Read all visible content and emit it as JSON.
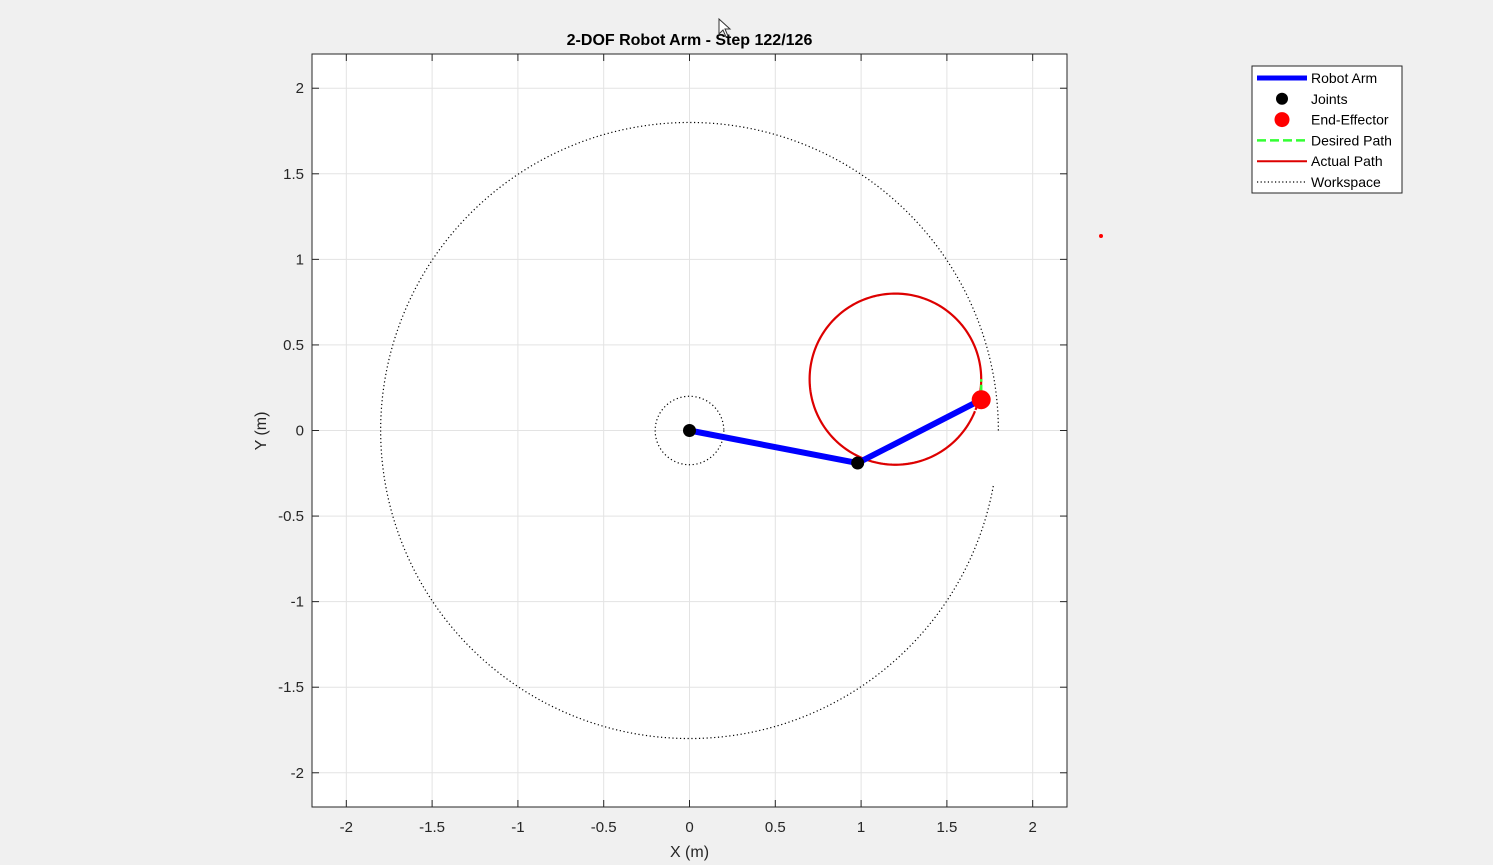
{
  "figure": {
    "background": "#f0f0f0",
    "cursor_icon": "mouse-pointer-icon"
  },
  "chart_data": {
    "type": "line",
    "title": "2-DOF Robot Arm - Step 122/126",
    "xlabel": "X (m)",
    "ylabel": "Y (m)",
    "xlim": [
      -2.2,
      2.2
    ],
    "ylim": [
      -2.2,
      2.2
    ],
    "xticks": [
      -2,
      -1.5,
      -1,
      -0.5,
      0,
      0.5,
      1,
      1.5,
      2
    ],
    "yticks": [
      -2,
      -1.5,
      -1,
      -0.5,
      0,
      0.5,
      1,
      1.5,
      2
    ],
    "xtick_labels": [
      "-2",
      "-1.5",
      "-1",
      "-0.5",
      "0",
      "0.5",
      "1",
      "1.5",
      "2"
    ],
    "ytick_labels": [
      "-2",
      "-1.5",
      "-1",
      "-0.5",
      "0",
      "0.5",
      "1",
      "1.5",
      "2"
    ],
    "grid": true,
    "legend_position": "outside-top-right",
    "colors": {
      "arm": "#0000ff",
      "joints": "#000000",
      "end_effector": "#ff0000",
      "desired_path": "#33ff33",
      "actual_path": "#dd0000",
      "workspace": "#000000"
    },
    "series": [
      {
        "name": "Robot Arm",
        "style": "solid-thick",
        "x": [
          0,
          0.98,
          1.7
        ],
        "y": [
          0,
          -0.19,
          0.18
        ]
      },
      {
        "name": "Joints",
        "style": "marker",
        "x": [
          0,
          0.98
        ],
        "y": [
          0,
          -0.19
        ]
      },
      {
        "name": "End-Effector",
        "style": "marker-large",
        "x": [
          1.7
        ],
        "y": [
          0.18
        ]
      },
      {
        "name": "Desired Path",
        "style": "dashed",
        "x": [
          1.7,
          1.7
        ],
        "y": [
          0.18,
          0.3
        ]
      },
      {
        "name": "Actual Path",
        "style": "solid",
        "center": [
          1.2,
          0.3
        ],
        "radius": 0.5,
        "start_deg": -21,
        "end_deg": 338
      },
      {
        "name": "Workspace",
        "style": "dotted",
        "outer_radius": 1.8,
        "inner_radius": 0.2,
        "gap_deg": [
          -10,
          0
        ]
      }
    ]
  }
}
